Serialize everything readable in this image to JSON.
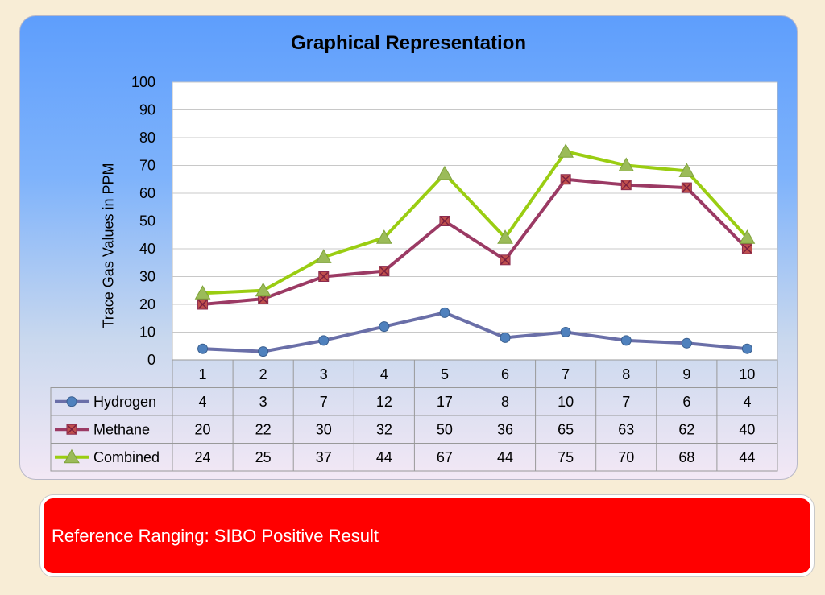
{
  "chart_data": {
    "type": "line",
    "title": "Graphical Representation",
    "ylabel": "Trace Gas Values in PPM",
    "xlabel": "",
    "ylim": [
      0,
      100
    ],
    "yticks": [
      0,
      10,
      20,
      30,
      40,
      50,
      60,
      70,
      80,
      90,
      100
    ],
    "categories": [
      "1",
      "2",
      "3",
      "4",
      "5",
      "6",
      "7",
      "8",
      "9",
      "10"
    ],
    "grid": true,
    "legend": "data-table-left",
    "series": [
      {
        "name": "Hydrogen",
        "values": [
          4,
          3,
          7,
          12,
          17,
          8,
          10,
          7,
          6,
          4
        ],
        "color": "#6a6fa8",
        "marker": "circle",
        "marker_color": "#4f81bd"
      },
      {
        "name": "Methane",
        "values": [
          20,
          22,
          30,
          32,
          50,
          36,
          65,
          63,
          62,
          40
        ],
        "color": "#9b3a64",
        "marker": "square-x",
        "marker_color": "#c0504d"
      },
      {
        "name": "Combined",
        "values": [
          24,
          25,
          37,
          44,
          67,
          44,
          75,
          70,
          68,
          44
        ],
        "color": "#9acd12",
        "marker": "triangle",
        "marker_color": "#9bbb59"
      }
    ]
  },
  "result": {
    "text": "Reference Ranging: SIBO Positive Result",
    "color": "#ff0000"
  }
}
